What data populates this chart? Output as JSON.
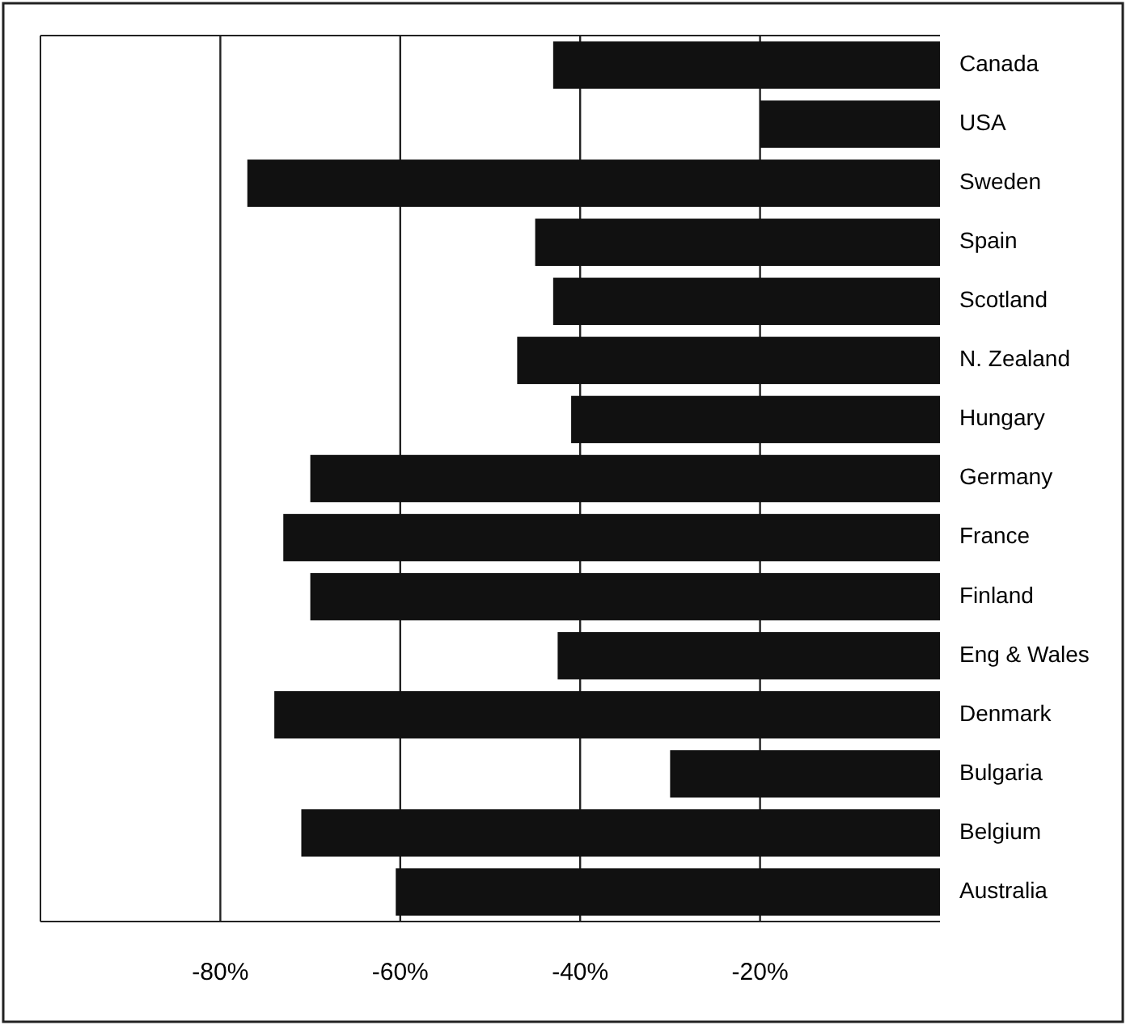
{
  "chart_data": {
    "type": "bar",
    "orientation": "horizontal",
    "categories": [
      "Canada",
      "USA",
      "Sweden",
      "Spain",
      "Scotland",
      "N. Zealand",
      "Hungary",
      "Germany",
      "France",
      "Finland",
      "Eng & Wales",
      "Denmark",
      "Bulgaria",
      "Belgium",
      "Australia"
    ],
    "values": [
      -43,
      -20,
      -77,
      -45,
      -43,
      -47,
      -41,
      -70,
      -73,
      -70,
      -42.5,
      -74,
      -30,
      -71,
      -60.5
    ],
    "color": "#111111",
    "xlim": [
      -100,
      0
    ],
    "xticks": [
      {
        "value": -80,
        "label": "-80%"
      },
      {
        "value": -60,
        "label": "-60%"
      },
      {
        "value": -40,
        "label": "-40%"
      },
      {
        "value": -20,
        "label": "-20%"
      }
    ],
    "grid": "x"
  }
}
